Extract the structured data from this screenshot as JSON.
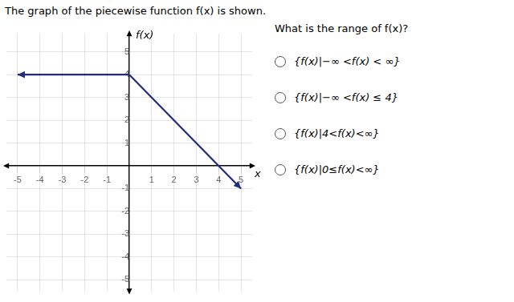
{
  "chart_data": {
    "type": "line",
    "title": "The graph of the piecewise function f(x) is shown.",
    "subtitle": "What is the range of f(x)?",
    "annotations": [
      "{f(x)|−∞ <f(x) < ∞}",
      "{f(x)|−∞ <f(x) ≤ 4}",
      "{f(x)|4<f(x)<∞}",
      "{f(x)|0≤f(x)<∞}"
    ],
    "xlabel": "x",
    "ylabel": "f(x)",
    "series": [
      {
        "color": "#1f2d7b",
        "x": [
          -5.0,
          0
        ],
        "values": [
          4,
          4
        ]
      },
      {
        "color": "#1f2d7b",
        "x": [
          0,
          5.0
        ],
        "values": [
          4,
          -1.0
        ]
      }
    ],
    "xlim": [
      -5.5,
      5.5
    ],
    "ylim": [
      -5.5,
      5.8
    ],
    "xticks": [
      -5,
      -4,
      -3,
      -2,
      -1,
      1,
      2,
      3,
      4,
      5
    ],
    "yticks": [
      -5,
      -4,
      -3,
      -2,
      -1,
      1,
      2,
      3,
      4,
      5
    ],
    "grid": true
  }
}
